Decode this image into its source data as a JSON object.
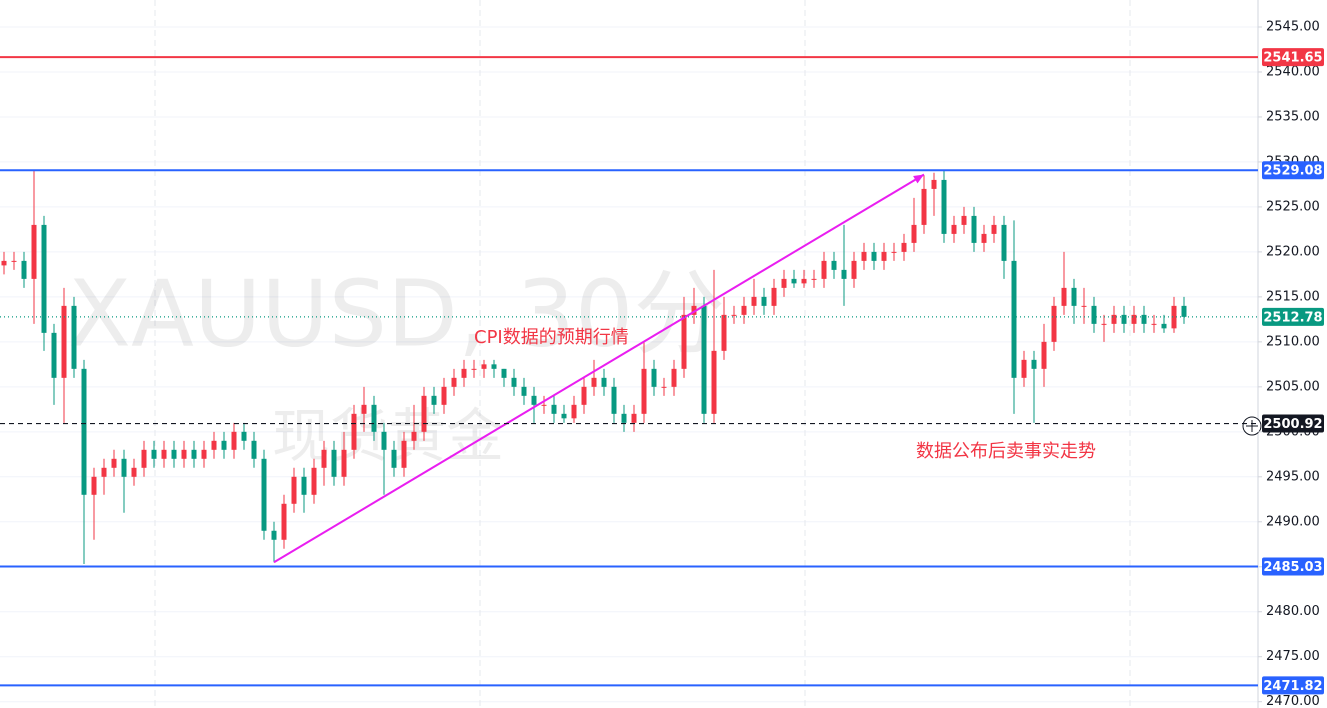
{
  "chart_data": {
    "type": "candlestick",
    "watermark": "XAUUSD, 30分",
    "watermark_sub": "现货黄金",
    "annotations": [
      {
        "text": "CPI数据的预期行情",
        "color": "#f23645"
      },
      {
        "text": "数据公布后卖事实走势",
        "color": "#f23645"
      }
    ],
    "arrow": {
      "from": [
        27,
        2485.5
      ],
      "to": [
        92,
        2528.6
      ],
      "color": "#e91ef0"
    },
    "up_color": "#f23645",
    "down_color": "#089981",
    "open": [
      2518.5,
      2519,
      2519,
      2517,
      2523,
      2511,
      2506,
      2514,
      2507,
      2493,
      2495,
      2496,
      2497,
      2495,
      2496,
      2498,
      2497,
      2498,
      2497,
      2498,
      2497,
      2498,
      2499,
      2498,
      2500,
      2499,
      2497,
      2489,
      2488,
      2492,
      2495,
      2493,
      2496,
      2498,
      2495,
      2498,
      2502,
      2503,
      2500,
      2498,
      2496,
      2499,
      2500,
      2504,
      2503,
      2505,
      2506,
      2507,
      2507,
      2507.5,
      2507,
      2506,
      2505,
      2504,
      2503,
      2503,
      2502,
      2501.5,
      2503,
      2505,
      2506,
      2505,
      2502,
      2501,
      2502,
      2507,
      2505,
      2505,
      2507,
      2513,
      2514,
      2502,
      2509,
      2513,
      2513,
      2514,
      2515,
      2514,
      2516,
      2517,
      2516.5,
      2517,
      2517,
      2519,
      2518,
      2517,
      2519,
      2520,
      2519,
      2520,
      2520,
      2521,
      2523,
      2527,
      2528,
      2522,
      2523,
      2524,
      2521,
      2522,
      2523,
      2519,
      2506,
      2508,
      2507,
      2510,
      2514,
      2516,
      2514,
      2514,
      2512,
      2512,
      2513,
      2512,
      2513,
      2512,
      2512,
      2511.5,
      2514
    ],
    "high": [
      2520,
      2520,
      2520,
      2529,
      2524,
      2512,
      2516,
      2515,
      2508,
      2496,
      2497,
      2498,
      2498,
      2497,
      2499,
      2499,
      2499,
      2499,
      2499,
      2499,
      2499,
      2500,
      2500,
      2501,
      2501,
      2500,
      2498,
      2490,
      2493,
      2496,
      2496,
      2497,
      2499,
      2499,
      2500,
      2503,
      2505,
      2504,
      2501,
      2499,
      2500,
      2503,
      2505,
      2505,
      2506,
      2507,
      2508,
      2508,
      2508,
      2508,
      2507,
      2507,
      2506,
      2505,
      2504,
      2504,
      2503,
      2504,
      2506,
      2508,
      2507,
      2506,
      2503,
      2503,
      2510,
      2508,
      2506,
      2508,
      2515,
      2516,
      2515,
      2518,
      2515,
      2514,
      2515,
      2517,
      2516,
      2517,
      2518,
      2518,
      2518,
      2518,
      2520,
      2520,
      2523,
      2520,
      2521,
      2521,
      2521,
      2521,
      2522,
      2526,
      2528.5,
      2528.8,
      2529,
      2524,
      2525,
      2525,
      2523,
      2524,
      2524,
      2523.5,
      2509,
      2509,
      2512,
      2515,
      2520,
      2517,
      2516,
      2515,
      2513,
      2514,
      2514,
      2514,
      2514,
      2513,
      2513,
      2515,
      2515
    ],
    "low": [
      2517.5,
      2518,
      2516,
      2512,
      2509,
      2503,
      2501,
      2506,
      2485.3,
      2488,
      2493,
      2495,
      2491,
      2494,
      2495,
      2496,
      2496,
      2496,
      2496,
      2496,
      2496,
      2497,
      2497,
      2497,
      2498,
      2496,
      2488,
      2485.5,
      2487,
      2491,
      2491,
      2492,
      2494,
      2494,
      2494,
      2497,
      2500,
      2499,
      2493,
      2495,
      2495,
      2498,
      2499,
      2502,
      2502,
      2504,
      2505,
      2506,
      2506,
      2506,
      2505,
      2504,
      2503,
      2501,
      2502,
      2501,
      2501,
      2501,
      2502,
      2504,
      2504,
      2501,
      2500,
      2500,
      2501,
      2504,
      2504,
      2504,
      2506,
      2512,
      2501,
      2501,
      2508,
      2512,
      2512,
      2513,
      2513,
      2513,
      2515,
      2516,
      2516,
      2516,
      2516,
      2517,
      2514,
      2516,
      2518,
      2518,
      2518,
      2519,
      2519,
      2520,
      2522,
      2524,
      2521,
      2521,
      2522,
      2520,
      2520,
      2521,
      2517,
      2502,
      2505,
      2501,
      2505,
      2509,
      2513,
      2512,
      2512,
      2511,
      2510,
      2511,
      2511,
      2511,
      2511,
      2511,
      2511,
      2511,
      2512
    ],
    "close": [
      2519,
      2519,
      2517,
      2523,
      2511,
      2506,
      2514,
      2507,
      2493,
      2495,
      2496,
      2497,
      2495,
      2496,
      2498,
      2497,
      2498,
      2497,
      2498,
      2497,
      2498,
      2499,
      2498,
      2500,
      2499,
      2497,
      2489,
      2488,
      2492,
      2495,
      2493,
      2496,
      2498,
      2495,
      2498,
      2502,
      2503,
      2500,
      2498,
      2496,
      2499,
      2500,
      2504,
      2503,
      2505,
      2506,
      2507,
      2507,
      2507.5,
      2507,
      2506,
      2505,
      2504,
      2503,
      2503,
      2502,
      2501.5,
      2503,
      2505,
      2506,
      2505,
      2502,
      2501,
      2502,
      2507,
      2505,
      2505,
      2507,
      2513,
      2514,
      2502,
      2509,
      2513,
      2513,
      2514,
      2515,
      2514,
      2516,
      2517,
      2516.5,
      2517,
      2517,
      2519,
      2518,
      2517,
      2519,
      2520,
      2519,
      2520,
      2520,
      2521,
      2523,
      2527,
      2528,
      2522,
      2523,
      2524,
      2521,
      2522,
      2523,
      2519,
      2506,
      2508,
      2507,
      2510,
      2514,
      2516,
      2514,
      2514,
      2512,
      2512,
      2513,
      2512,
      2513,
      2512,
      2512,
      2511.5,
      2514,
      2512.78
    ],
    "levels": [
      {
        "value": 2541.65,
        "color": "#f23645",
        "style": "solid"
      },
      {
        "value": 2529.08,
        "color": "#2962ff",
        "style": "solid"
      },
      {
        "value": 2485.03,
        "color": "#2962ff",
        "style": "solid"
      },
      {
        "value": 2471.82,
        "color": "#2962ff",
        "style": "solid"
      },
      {
        "value": 2512.78,
        "color": "#089981",
        "style": "dotted"
      },
      {
        "value": 2500.92,
        "color": "#131722",
        "style": "dashed"
      }
    ],
    "ylim": [
      2469.3,
      2548
    ],
    "yticks": [
      {
        "value": 2470,
        "label": "2470.00"
      },
      {
        "value": 2475,
        "label": "2475.00"
      },
      {
        "value": 2480,
        "label": "2480.00"
      },
      {
        "value": 2485,
        "label": "2485.00"
      },
      {
        "value": 2490,
        "label": "2490.00"
      },
      {
        "value": 2495,
        "label": "2495.00"
      },
      {
        "value": 2500,
        "label": "2500.00"
      },
      {
        "value": 2505,
        "label": "2505.00"
      },
      {
        "value": 2510,
        "label": "2510.00"
      },
      {
        "value": 2515,
        "label": "2515.00"
      },
      {
        "value": 2520,
        "label": "2520.00"
      },
      {
        "value": 2525,
        "label": "2525.00"
      },
      {
        "value": 2530,
        "label": "2530.00"
      },
      {
        "value": 2535,
        "label": "2535.00"
      },
      {
        "value": 2540,
        "label": "2540.00"
      },
      {
        "value": 2545,
        "label": "2545.00"
      }
    ],
    "grid": true
  }
}
